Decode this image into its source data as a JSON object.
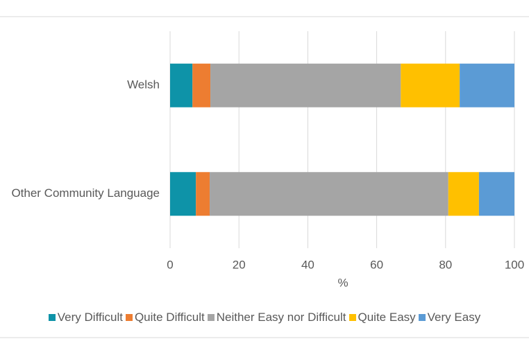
{
  "chart_data": {
    "type": "stacked-barh",
    "categories": [
      "Welsh",
      "Other Community Language"
    ],
    "series": [
      {
        "name": "Very Difficult",
        "color": "#0e93a8",
        "values": [
          6.5,
          7.5
        ]
      },
      {
        "name": "Quite Difficult",
        "color": "#ed7d31",
        "values": [
          5.2,
          4.0
        ]
      },
      {
        "name": "Neither Easy nor Difficult",
        "color": "#a5a5a5",
        "values": [
          55.3,
          69.3
        ]
      },
      {
        "name": "Quite Easy",
        "color": "#ffc000",
        "values": [
          17.1,
          8.9
        ]
      },
      {
        "name": "Very Easy",
        "color": "#5b9bd5",
        "values": [
          15.9,
          10.3
        ]
      }
    ],
    "xlabel": "%",
    "xlim": [
      0,
      100
    ],
    "xticks": [
      0,
      20,
      40,
      60,
      80,
      100
    ],
    "grid": true,
    "legend": "bottom"
  }
}
